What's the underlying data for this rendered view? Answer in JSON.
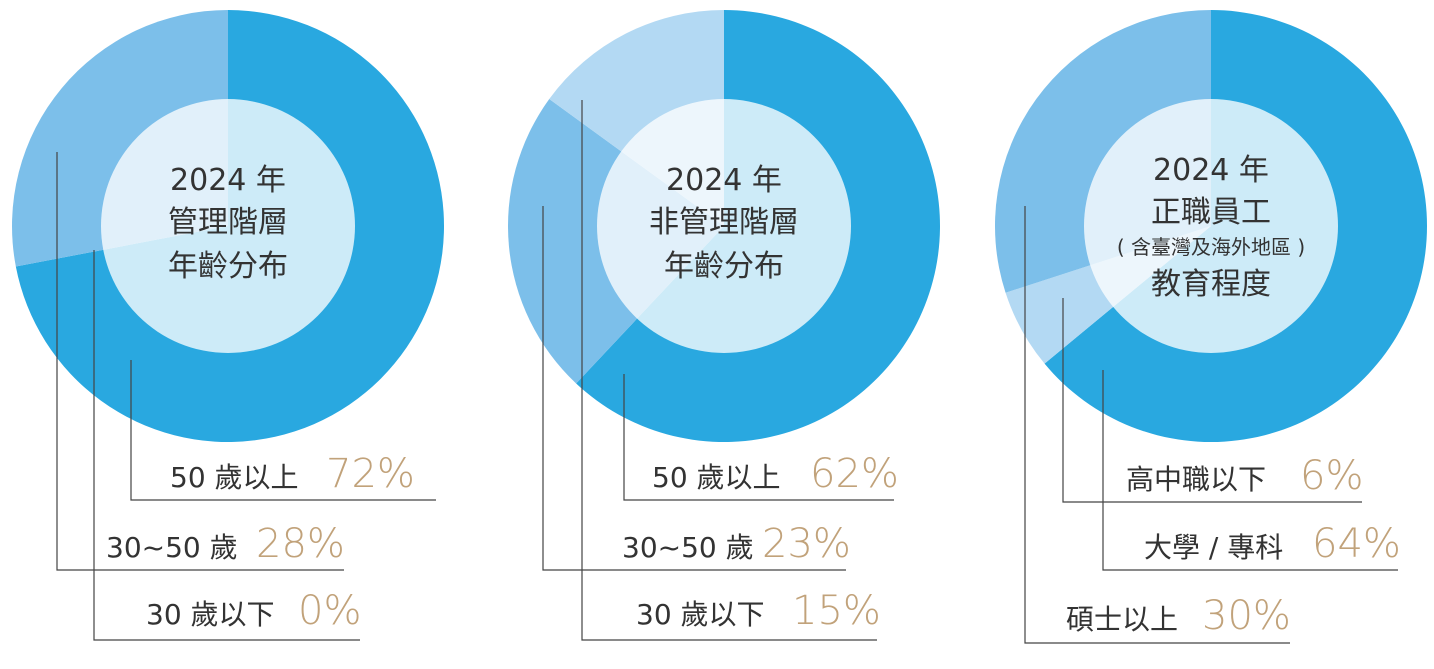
{
  "chart_data": [
    {
      "type": "pie",
      "title_lines": [
        "2024 年",
        "管理階層",
        "年齡分布"
      ],
      "slices": [
        {
          "label": "50 歲以上",
          "value": 72,
          "pct_text": "72%",
          "color": "#29a8e0"
        },
        {
          "label": "30~50 歲",
          "value": 28,
          "pct_text": "28%",
          "color": "#7cbfea"
        },
        {
          "label": "30 歲以下",
          "value": 0,
          "pct_text": "0%",
          "color": "#b3d9f3"
        }
      ]
    },
    {
      "type": "pie",
      "title_lines": [
        "2024 年",
        "非管理階層",
        "年齡分布"
      ],
      "slices": [
        {
          "label": "50 歲以上",
          "value": 62,
          "pct_text": "62%",
          "color": "#29a8e0"
        },
        {
          "label": "30~50 歲",
          "value": 23,
          "pct_text": "23%",
          "color": "#7cbfea"
        },
        {
          "label": "30 歲以下",
          "value": 15,
          "pct_text": "15%",
          "color": "#b3d9f3"
        }
      ]
    },
    {
      "type": "pie",
      "title_lines": [
        "2024 年",
        "正職員工",
        "( 含臺灣及海外地區 )",
        "教育程度"
      ],
      "slices": [
        {
          "label": "大學 / 專科",
          "value": 64,
          "pct_text": "64%",
          "color": "#29a8e0"
        },
        {
          "label": "高中職以下",
          "value": 6,
          "pct_text": "6%",
          "color": "#b3d9f3"
        },
        {
          "label": "碩士以上",
          "value": 30,
          "pct_text": "30%",
          "color": "#7cbfea"
        }
      ]
    }
  ],
  "colors": {
    "inner_overlay": "#ffffff",
    "center_text": "#333333",
    "label_text": "#333333",
    "percent_text": "#c1a27a",
    "leader_line": "#444444"
  }
}
